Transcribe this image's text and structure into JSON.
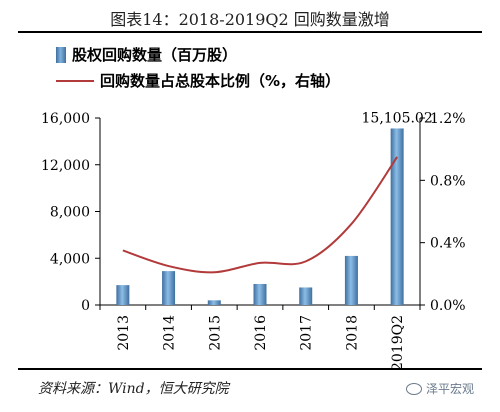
{
  "header": {
    "title": "图表14：2018-2019Q2 回购数量激增"
  },
  "footer": {
    "source": "资料来源：Wind，恒大研究院",
    "watermark": "泽平宏观",
    "watermark_icon": "circle-logo-icon"
  },
  "colors": {
    "bar": "#5b8fc1",
    "line": "#b23a3a"
  },
  "chart_data": {
    "type": "bar",
    "categories": [
      "2013",
      "2014",
      "2015",
      "2016",
      "2017",
      "2018",
      "2019Q2"
    ],
    "series": [
      {
        "name": "股权回购数量（百万股）",
        "type": "bar",
        "axis": "left",
        "values": [
          1700,
          2900,
          400,
          1800,
          1500,
          4200,
          15105.02
        ]
      },
      {
        "name": "回购数量占总股本比例（%，右轴）",
        "type": "line",
        "axis": "right",
        "values": [
          0.35,
          0.25,
          0.21,
          0.27,
          0.28,
          0.52,
          0.95
        ]
      }
    ],
    "data_labels": [
      {
        "category": "2019Q2",
        "text": "15,105.02"
      }
    ],
    "left_axis": {
      "ylim": [
        0,
        16000
      ],
      "ticks": [
        0,
        4000,
        8000,
        12000,
        16000
      ],
      "tick_labels": [
        "0",
        "4,000",
        "8,000",
        "12,000",
        "16,000"
      ]
    },
    "right_axis": {
      "ylim": [
        0,
        1.2
      ],
      "ticks": [
        0,
        0.4,
        0.8,
        1.2
      ],
      "tick_labels": [
        "0.0%",
        "0.4%",
        "0.8%",
        "1.2%"
      ]
    },
    "legend": "top-left",
    "grid": false
  }
}
